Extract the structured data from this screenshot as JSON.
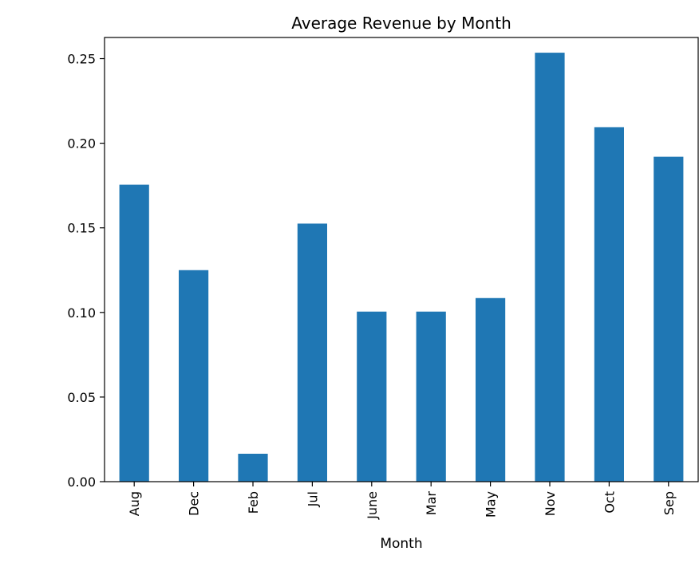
{
  "chart_data": {
    "type": "bar",
    "title": "Average Revenue by Month",
    "xlabel": "Month",
    "ylabel": "",
    "categories": [
      "Aug",
      "Dec",
      "Feb",
      "Jul",
      "June",
      "Mar",
      "May",
      "Nov",
      "Oct",
      "Sep"
    ],
    "values": [
      0.1755,
      0.125,
      0.0165,
      0.1525,
      0.1005,
      0.1005,
      0.1085,
      0.2535,
      0.2095,
      0.192
    ],
    "ylim": [
      0,
      0.2625
    ],
    "yticks": [
      0.0,
      0.05,
      0.1,
      0.15,
      0.2,
      0.25
    ],
    "ytick_labels": [
      "0.00",
      "0.05",
      "0.10",
      "0.15",
      "0.20",
      "0.25"
    ],
    "grid": false,
    "bar_color": "#1f77b4"
  }
}
